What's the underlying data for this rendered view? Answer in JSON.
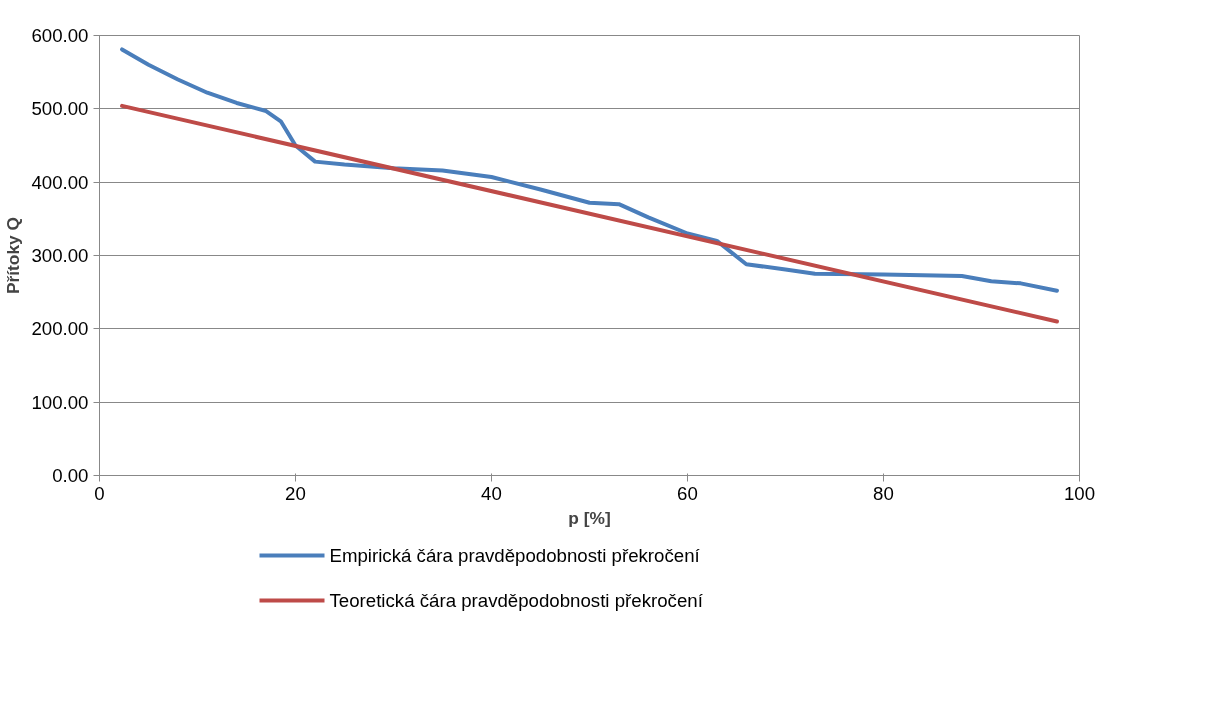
{
  "chart_data": {
    "type": "line",
    "xlabel": "p [%]",
    "ylabel": "Přítoky Q",
    "xlim": [
      0,
      100
    ],
    "xticks": [
      0,
      20,
      40,
      60,
      80,
      100
    ],
    "ylim": [
      0,
      600
    ],
    "yticks": [
      {
        "value": 0,
        "label": "0.00"
      },
      {
        "value": 100,
        "label": "100.00"
      },
      {
        "value": 200,
        "label": "200.00"
      },
      {
        "value": 300,
        "label": "300.00"
      },
      {
        "value": 400,
        "label": "400.00"
      },
      {
        "value": 500,
        "label": "500.00"
      },
      {
        "value": 600,
        "label": "600.00"
      }
    ],
    "grid": "y",
    "legend": "bottom",
    "marker": "none",
    "line_style": "solid",
    "series": [
      {
        "name": "Empirická čára pravděpodobnosti překročení",
        "color": "#4a7ebb",
        "x": [
          2.3,
          5,
          8,
          11,
          14,
          17,
          18.5,
          20,
          22,
          25,
          30,
          35,
          40,
          45,
          50,
          53,
          56,
          60,
          63,
          66,
          70,
          73,
          80,
          88,
          91,
          94,
          97.7
        ],
        "values": [
          581,
          560,
          540,
          522,
          508,
          497,
          483,
          450,
          428,
          424,
          419,
          416,
          407,
          390,
          372,
          370,
          352,
          330,
          320,
          288,
          281,
          275,
          274,
          272,
          265,
          262,
          252
        ]
      },
      {
        "name": "Teoretická čára pravděpodobnosti překročení",
        "color": "#be4b48",
        "x": [
          2.3,
          97.7
        ],
        "values": [
          504,
          210
        ]
      }
    ]
  }
}
